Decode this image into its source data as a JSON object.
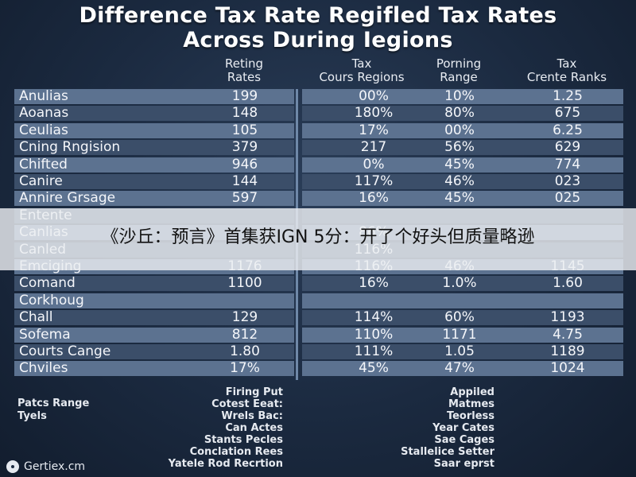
{
  "title": {
    "line1": "Difference Tax Rate Regifled Tax Rates",
    "line2": "Across During Iegions"
  },
  "columns": [
    {
      "line1": "Reting",
      "line2": "Rates"
    },
    {
      "line1": "Tax",
      "line2": "Cours Regions"
    },
    {
      "line1": "Porning",
      "line2": "Range"
    },
    {
      "line1": "Tax",
      "line2": "Crente Ranks"
    }
  ],
  "rows": [
    {
      "name": "Anulias",
      "v1": "199",
      "v2": "00%",
      "v3": "10%",
      "v4": "1.25"
    },
    {
      "name": "Aoanas",
      "v1": "148",
      "v2": "180%",
      "v3": "80%",
      "v4": "675"
    },
    {
      "name": "Ceulias",
      "v1": "105",
      "v2": "17%",
      "v3": "00%",
      "v4": "6.25"
    },
    {
      "name": "Cning Rngision",
      "v1": "379",
      "v2": "217",
      "v3": "56%",
      "v4": "629"
    },
    {
      "name": "Chifted",
      "v1": "946",
      "v2": "0%",
      "v3": "45%",
      "v4": "774"
    },
    {
      "name": "Canire",
      "v1": "144",
      "v2": "117%",
      "v3": "46%",
      "v4": "023"
    },
    {
      "name": "Annire Grsage",
      "v1": "597",
      "v2": "16%",
      "v3": "45%",
      "v4": "025"
    },
    {
      "name": "Entente",
      "v1": "",
      "v2": "",
      "v3": "",
      "v4": ""
    },
    {
      "name": "Canlias",
      "v1": "",
      "v2": "86%",
      "v3": "",
      "v4": ""
    },
    {
      "name": "Canled",
      "v1": "",
      "v2": "116%",
      "v3": "",
      "v4": ""
    },
    {
      "name": "Emciging",
      "v1": "1176",
      "v2": "116%",
      "v3": "46%",
      "v4": "1145"
    },
    {
      "name": "Comand",
      "v1": "1100",
      "v2": "16%",
      "v3": "1.0%",
      "v4": "1.60"
    },
    {
      "name": "Corkhoug",
      "v1": "",
      "v2": "",
      "v3": "",
      "v4": ""
    },
    {
      "name": "Chall",
      "v1": "129",
      "v2": "114%",
      "v3": "60%",
      "v4": "1193"
    },
    {
      "name": "Sofema",
      "v1": "812",
      "v2": "110%",
      "v3": "1171",
      "v4": "4.75"
    },
    {
      "name": "Courts Cange",
      "v1": "1.80",
      "v2": "111%",
      "v3": "1.05",
      "v4": "1189"
    },
    {
      "name": "Chviles",
      "v1": "17%",
      "v2": "45%",
      "v3": "47%",
      "v4": "1024"
    }
  ],
  "overlay_text": "《沙丘：预言》首集获IGN 5分：开了个好头但质量略逊",
  "footer": {
    "left_lines": [
      "Patcs Range",
      "Tyels"
    ],
    "mid_lines": [
      "Firing Put",
      "Cotest Eeat:",
      "Wrels Bac:",
      "Can Actes",
      "Stants Pecles",
      "Conclation Rees",
      "Yatele Rod Recrtion"
    ],
    "right_lines": [
      "Appiled",
      "Matmes",
      "Teorless",
      "Year Cates",
      "Sae Cages",
      "Stallelice Setter",
      "Saar eprst"
    ]
  },
  "brand": "Gertiex.cm",
  "colors": {
    "background": "#1b2a40",
    "stripe_row": "#5c7290",
    "plain_row": "#3b4e69",
    "overlay": "#eceef2"
  }
}
